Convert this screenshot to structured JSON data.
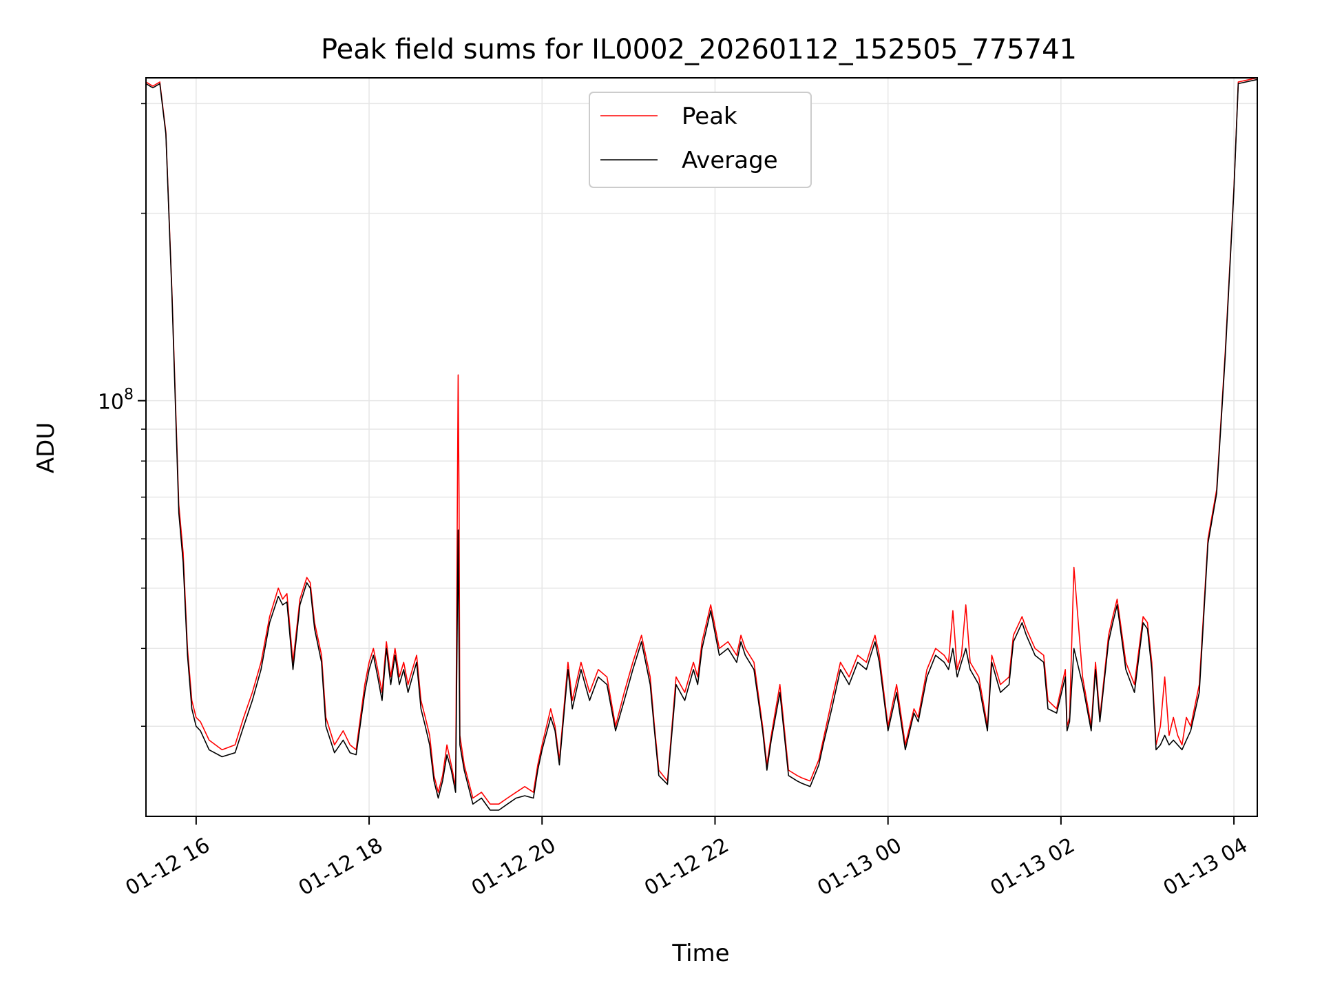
{
  "chart_data": {
    "type": "line",
    "title": "Peak field sums for IL0002_20260112_152505_775741",
    "xlabel": "Time",
    "ylabel": "ADU",
    "y_scale": "log",
    "ylim": [
      21500000,
      330000000
    ],
    "xlim_hours": [
      15.42,
      28.27
    ],
    "x_unit": "hours since 2026-01-12 00:00",
    "grid": true,
    "legend_position": "upper-center",
    "x_ticks": [
      {
        "value": 16,
        "label": "01-12 16"
      },
      {
        "value": 18,
        "label": "01-12 18"
      },
      {
        "value": 20,
        "label": "01-12 20"
      },
      {
        "value": 22,
        "label": "01-12 22"
      },
      {
        "value": 24,
        "label": "01-13 00"
      },
      {
        "value": 26,
        "label": "01-13 02"
      },
      {
        "value": 28,
        "label": "01-13 04"
      }
    ],
    "y_major_tick": {
      "value": 100000000,
      "base": "10",
      "exponent": "8"
    },
    "y_minor_ticks": [
      30000000,
      40000000,
      50000000,
      60000000,
      70000000,
      80000000,
      90000000,
      200000000,
      300000000
    ],
    "series": [
      {
        "name": "Peak",
        "color": "#ff0000",
        "x": [
          15.42,
          15.5,
          15.58,
          15.65,
          15.72,
          15.8,
          15.85,
          15.9,
          15.95,
          16.0,
          16.05,
          16.15,
          16.3,
          16.45,
          16.55,
          16.65,
          16.75,
          16.85,
          16.95,
          17.0,
          17.05,
          17.12,
          17.2,
          17.28,
          17.32,
          17.37,
          17.45,
          17.5,
          17.6,
          17.7,
          17.78,
          17.85,
          17.95,
          18.0,
          18.05,
          18.1,
          18.15,
          18.2,
          18.25,
          18.3,
          18.35,
          18.4,
          18.45,
          18.5,
          18.55,
          18.6,
          18.65,
          18.7,
          18.75,
          18.8,
          18.85,
          18.9,
          18.95,
          19.0,
          19.03,
          19.04,
          19.05,
          19.1,
          19.2,
          19.3,
          19.4,
          19.5,
          19.6,
          19.7,
          19.8,
          19.9,
          19.95,
          20.0,
          20.1,
          20.15,
          20.2,
          20.3,
          20.35,
          20.45,
          20.55,
          20.65,
          20.75,
          20.85,
          20.95,
          21.05,
          21.15,
          21.25,
          21.3,
          21.35,
          21.45,
          21.55,
          21.65,
          21.75,
          21.8,
          21.85,
          21.95,
          22.05,
          22.15,
          22.25,
          22.3,
          22.35,
          22.45,
          22.55,
          22.6,
          22.65,
          22.75,
          22.85,
          22.95,
          23.0,
          23.1,
          23.2,
          23.25,
          23.35,
          23.45,
          23.55,
          23.65,
          23.75,
          23.8,
          23.85,
          23.9,
          24.0,
          24.1,
          24.2,
          24.3,
          24.35,
          24.45,
          24.55,
          24.65,
          24.7,
          24.75,
          24.8,
          24.85,
          24.9,
          24.95,
          25.05,
          25.15,
          25.2,
          25.3,
          25.4,
          25.45,
          25.55,
          25.6,
          25.7,
          25.8,
          25.85,
          25.95,
          26.05,
          26.07,
          26.1,
          26.15,
          26.25,
          26.35,
          26.4,
          26.45,
          26.55,
          26.6,
          26.65,
          26.75,
          26.85,
          26.95,
          27.0,
          27.05,
          27.1,
          27.15,
          27.2,
          27.25,
          27.3,
          27.35,
          27.4,
          27.45,
          27.5,
          27.6,
          27.7,
          27.8,
          27.9,
          28.0,
          28.05,
          28.27
        ],
        "values": [
          325000000,
          320000000,
          325000000,
          270000000,
          150000000,
          68000000,
          57000000,
          40000000,
          33000000,
          31000000,
          30500000,
          28500000,
          27500000,
          28000000,
          31000000,
          34000000,
          38000000,
          45000000,
          50000000,
          48000000,
          49000000,
          38000000,
          48000000,
          52000000,
          51000000,
          44000000,
          39000000,
          31000000,
          28000000,
          29500000,
          28000000,
          27500000,
          35000000,
          38000000,
          40000000,
          37000000,
          34000000,
          41000000,
          36000000,
          40000000,
          36000000,
          38000000,
          35000000,
          37000000,
          39000000,
          33000000,
          31000000,
          29000000,
          25000000,
          23500000,
          25000000,
          28000000,
          26000000,
          24000000,
          110000000,
          70000000,
          29000000,
          26000000,
          23000000,
          23500000,
          22500000,
          22500000,
          23000000,
          23500000,
          24000000,
          23500000,
          26000000,
          28000000,
          32000000,
          30000000,
          26500000,
          38000000,
          33000000,
          38000000,
          34000000,
          37000000,
          36000000,
          30000000,
          34000000,
          38000000,
          42000000,
          36000000,
          30000000,
          25500000,
          24500000,
          36000000,
          34000000,
          38000000,
          36000000,
          41000000,
          47000000,
          40000000,
          41000000,
          39000000,
          42000000,
          40000000,
          38000000,
          30000000,
          26000000,
          29000000,
          35000000,
          25500000,
          25000000,
          24800000,
          24500000,
          26500000,
          28500000,
          33000000,
          38000000,
          36000000,
          39000000,
          38000000,
          40000000,
          42000000,
          39000000,
          30000000,
          35000000,
          28000000,
          32000000,
          31000000,
          37000000,
          40000000,
          39000000,
          38000000,
          46000000,
          37000000,
          39000000,
          47000000,
          38000000,
          36000000,
          30000000,
          39000000,
          35000000,
          36000000,
          42000000,
          45000000,
          43000000,
          40000000,
          39000000,
          33000000,
          32000000,
          37000000,
          30000000,
          31000000,
          54000000,
          36000000,
          30000000,
          38000000,
          31000000,
          42000000,
          45000000,
          48000000,
          38000000,
          35000000,
          45000000,
          44000000,
          38000000,
          28000000,
          30000000,
          36000000,
          29000000,
          31000000,
          29000000,
          28000000,
          31000000,
          30000000,
          35000000,
          60000000,
          72000000,
          120000000,
          220000000,
          325000000,
          330000000
        ]
      },
      {
        "name": "Average",
        "color": "#000000",
        "x": [
          15.42,
          15.5,
          15.58,
          15.65,
          15.72,
          15.8,
          15.85,
          15.9,
          15.95,
          16.0,
          16.05,
          16.15,
          16.3,
          16.45,
          16.55,
          16.65,
          16.75,
          16.85,
          16.95,
          17.0,
          17.05,
          17.12,
          17.2,
          17.28,
          17.32,
          17.37,
          17.45,
          17.5,
          17.6,
          17.7,
          17.78,
          17.85,
          17.95,
          18.0,
          18.05,
          18.1,
          18.15,
          18.2,
          18.25,
          18.3,
          18.35,
          18.4,
          18.45,
          18.5,
          18.55,
          18.6,
          18.65,
          18.7,
          18.75,
          18.8,
          18.85,
          18.9,
          18.95,
          19.0,
          19.03,
          19.04,
          19.05,
          19.1,
          19.2,
          19.3,
          19.4,
          19.5,
          19.6,
          19.7,
          19.8,
          19.9,
          19.95,
          20.0,
          20.1,
          20.15,
          20.2,
          20.3,
          20.35,
          20.45,
          20.55,
          20.65,
          20.75,
          20.85,
          20.95,
          21.05,
          21.15,
          21.25,
          21.3,
          21.35,
          21.45,
          21.55,
          21.65,
          21.75,
          21.8,
          21.85,
          21.95,
          22.05,
          22.15,
          22.25,
          22.3,
          22.35,
          22.45,
          22.55,
          22.6,
          22.65,
          22.75,
          22.85,
          22.95,
          23.0,
          23.1,
          23.2,
          23.25,
          23.35,
          23.45,
          23.55,
          23.65,
          23.75,
          23.8,
          23.85,
          23.9,
          24.0,
          24.1,
          24.2,
          24.3,
          24.35,
          24.45,
          24.55,
          24.65,
          24.7,
          24.75,
          24.8,
          24.85,
          24.9,
          24.95,
          25.05,
          25.15,
          25.2,
          25.3,
          25.4,
          25.45,
          25.55,
          25.6,
          25.7,
          25.8,
          25.85,
          25.95,
          26.05,
          26.07,
          26.1,
          26.15,
          26.25,
          26.35,
          26.4,
          26.45,
          26.55,
          26.6,
          26.65,
          26.75,
          26.85,
          26.95,
          27.0,
          27.05,
          27.1,
          27.15,
          27.2,
          27.25,
          27.3,
          27.35,
          27.4,
          27.45,
          27.5,
          27.6,
          27.7,
          27.8,
          27.9,
          28.0,
          28.05,
          28.27
        ],
        "values": [
          323000000,
          318000000,
          323000000,
          268000000,
          148000000,
          66000000,
          55000000,
          39000000,
          32000000,
          30000000,
          29500000,
          27500000,
          26800000,
          27200000,
          30000000,
          33000000,
          37000000,
          44000000,
          48500000,
          47000000,
          47500000,
          37000000,
          47000000,
          51000000,
          50000000,
          43000000,
          38000000,
          30000000,
          27200000,
          28500000,
          27200000,
          27000000,
          34000000,
          37000000,
          39000000,
          36000000,
          33000000,
          40000000,
          35000000,
          39000000,
          35000000,
          37000000,
          34000000,
          36000000,
          38000000,
          32000000,
          30000000,
          28000000,
          24500000,
          23000000,
          24500000,
          27000000,
          25500000,
          23500000,
          62000000,
          40000000,
          28000000,
          25500000,
          22500000,
          23000000,
          22000000,
          22000000,
          22500000,
          23000000,
          23200000,
          23000000,
          25500000,
          27500000,
          31000000,
          29500000,
          26000000,
          37000000,
          32000000,
          37000000,
          33000000,
          36000000,
          35000000,
          29500000,
          33000000,
          37000000,
          41000000,
          35000000,
          29500000,
          25000000,
          24200000,
          35000000,
          33000000,
          37000000,
          35000000,
          40000000,
          46000000,
          39000000,
          40000000,
          38000000,
          41000000,
          39000000,
          37000000,
          29500000,
          25500000,
          28500000,
          34000000,
          25000000,
          24500000,
          24300000,
          24000000,
          26000000,
          28000000,
          32000000,
          37000000,
          35000000,
          38000000,
          37000000,
          39000000,
          41000000,
          38000000,
          29500000,
          34000000,
          27500000,
          31500000,
          30500000,
          36000000,
          39000000,
          38000000,
          37000000,
          40000000,
          36000000,
          38000000,
          40000000,
          37000000,
          35000000,
          29500000,
          38000000,
          34000000,
          35000000,
          41000000,
          44000000,
          42000000,
          39000000,
          38000000,
          32000000,
          31500000,
          36000000,
          29500000,
          30500000,
          40000000,
          35000000,
          29500000,
          37000000,
          30500000,
          41000000,
          44000000,
          47000000,
          37000000,
          34000000,
          44000000,
          43000000,
          37000000,
          27500000,
          28000000,
          29000000,
          28000000,
          28500000,
          28000000,
          27500000,
          28500000,
          29500000,
          34000000,
          59000000,
          71000000,
          118000000,
          218000000,
          323000000,
          328000000
        ]
      }
    ]
  }
}
